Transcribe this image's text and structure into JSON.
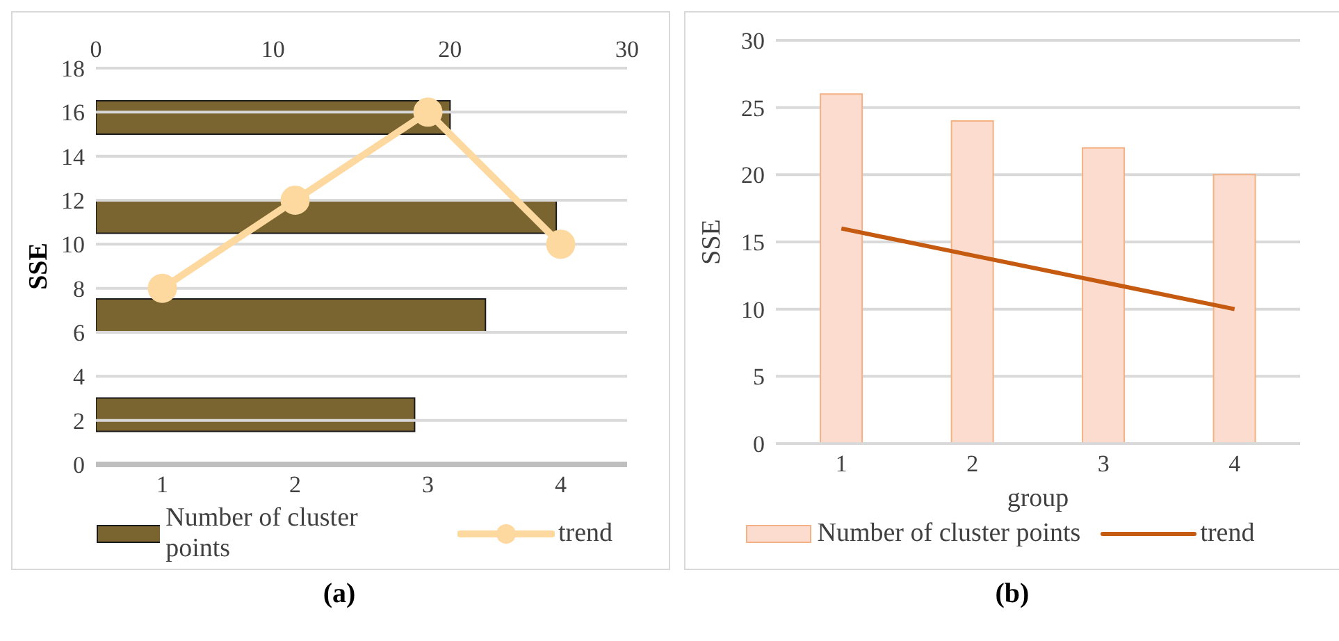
{
  "chart_data": [
    {
      "type": "bar",
      "orientation": "horizontal",
      "categories": [
        null,
        null,
        null,
        null
      ],
      "series": [
        {
          "name": "Number of cluster points",
          "color": "#7a6530",
          "values": [
            20,
            26,
            22,
            18
          ]
        }
      ],
      "xlim": [
        0,
        30
      ],
      "xticks": [
        0,
        10,
        20,
        30
      ],
      "tick_labels": "x",
      "legend": "bottom"
    },
    {
      "type": "line",
      "ylabel": "SSE",
      "categories": [
        "1",
        "2",
        "3",
        "4"
      ],
      "series": [
        {
          "name": "trend",
          "color": "#fdd9a0",
          "values": [
            8,
            12,
            16,
            10
          ]
        }
      ],
      "ylim": [
        0,
        18
      ],
      "yticks": [
        0,
        2,
        4,
        6,
        8,
        10,
        12,
        14,
        16,
        18
      ],
      "grid": "y",
      "legend": "bottom",
      "marker": "circle",
      "annotations": [
        "(a)"
      ]
    },
    {
      "type": "bar",
      "ylabel": "SSE",
      "xlabel": "group",
      "categories": [
        "1",
        "2",
        "3",
        "4"
      ],
      "series": [
        {
          "name": "Number of cluster points",
          "color": "#fcdccf",
          "values": [
            26,
            24,
            22,
            20
          ]
        },
        {
          "name": "trend",
          "type": "line",
          "color": "#c55a11",
          "values": [
            16,
            14,
            12,
            10
          ]
        }
      ],
      "ylim": [
        0,
        30
      ],
      "yticks": [
        0,
        5,
        10,
        15,
        20,
        25,
        30
      ],
      "grid": "y",
      "legend": "bottom",
      "annotations": [
        "(b)"
      ]
    }
  ]
}
